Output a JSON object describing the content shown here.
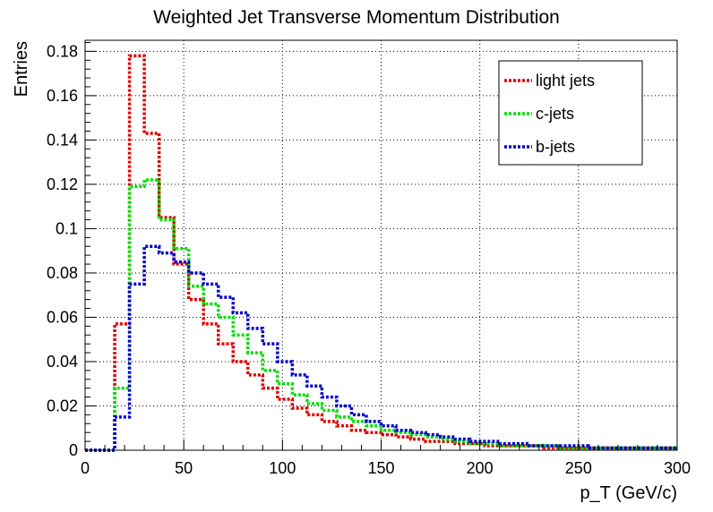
{
  "chart_data": {
    "type": "line",
    "title": "Weighted Jet Transverse Momentum Distribution",
    "xlabel": "p_T (GeV/c)",
    "ylabel": "Entries",
    "xlim": [
      0,
      300
    ],
    "ylim": [
      0,
      0.185
    ],
    "grid": true,
    "legend_position": "top-right",
    "x_ticks": [
      0,
      50,
      100,
      150,
      200,
      250,
      300
    ],
    "x_tick_labels": [
      "0",
      "50",
      "100",
      "150",
      "200",
      "250",
      "300"
    ],
    "y_ticks": [
      0,
      0.02,
      0.04,
      0.06,
      0.08,
      0.1,
      0.12,
      0.14,
      0.16,
      0.18
    ],
    "y_tick_labels": [
      "0",
      "0.02",
      "0.04",
      "0.06",
      "0.08",
      "0.1",
      "0.12",
      "0.14",
      "0.16",
      "0.18"
    ],
    "bin_edges": [
      0,
      7.5,
      15,
      22.5,
      30,
      37.5,
      45,
      52.5,
      60,
      67.5,
      75,
      82.5,
      90,
      97.5,
      105,
      112.5,
      120,
      127.5,
      135,
      142.5,
      150,
      157.5,
      165,
      172.5,
      180,
      187.5,
      195,
      202.5,
      210,
      217.5,
      225,
      232.5,
      240,
      247.5,
      255,
      262.5,
      270,
      277.5,
      285,
      292.5,
      300
    ],
    "series": [
      {
        "name": "light jets",
        "color": "#e00000",
        "values": [
          0,
          0,
          0.057,
          0.178,
          0.143,
          0.105,
          0.084,
          0.068,
          0.057,
          0.048,
          0.04,
          0.034,
          0.028,
          0.023,
          0.019,
          0.016,
          0.013,
          0.011,
          0.009,
          0.008,
          0.007,
          0.006,
          0.005,
          0.004,
          0.004,
          0.003,
          0.003,
          0.002,
          0.002,
          0.002,
          0.002,
          0.001,
          0.001,
          0.001,
          0.001,
          0.001,
          0.001,
          0.001,
          0.001,
          0.001
        ]
      },
      {
        "name": "c-jets",
        "color": "#00e000",
        "values": [
          0,
          0,
          0.028,
          0.119,
          0.122,
          0.104,
          0.091,
          0.074,
          0.066,
          0.06,
          0.052,
          0.044,
          0.036,
          0.03,
          0.025,
          0.021,
          0.018,
          0.015,
          0.013,
          0.011,
          0.009,
          0.008,
          0.007,
          0.006,
          0.005,
          0.004,
          0.003,
          0.003,
          0.002,
          0.002,
          0.002,
          0.002,
          0.001,
          0.001,
          0.001,
          0.001,
          0.001,
          0.001,
          0.001,
          0.001
        ]
      },
      {
        "name": "b-jets",
        "color": "#0000cc",
        "values": [
          0,
          0,
          0.015,
          0.075,
          0.092,
          0.089,
          0.085,
          0.08,
          0.075,
          0.069,
          0.062,
          0.055,
          0.048,
          0.04,
          0.034,
          0.029,
          0.024,
          0.02,
          0.016,
          0.013,
          0.011,
          0.009,
          0.008,
          0.007,
          0.006,
          0.005,
          0.004,
          0.004,
          0.003,
          0.003,
          0.002,
          0.002,
          0.002,
          0.002,
          0.001,
          0.001,
          0.001,
          0.001,
          0.001,
          0.001
        ]
      }
    ]
  }
}
